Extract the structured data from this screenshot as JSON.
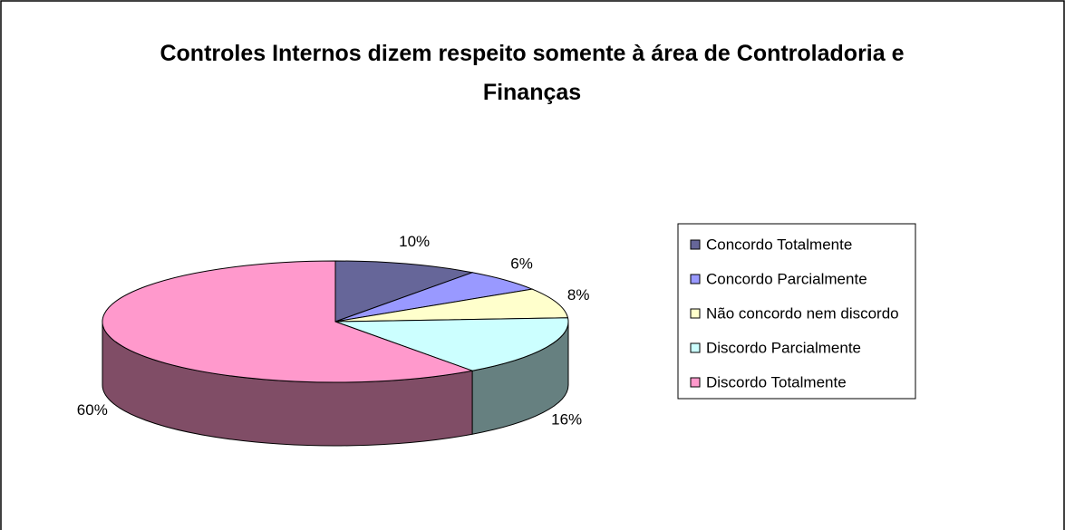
{
  "chart_data": {
    "type": "pie",
    "title": "Controles Internos dizem respeito somente à área de Controladoria e Finanças",
    "categories": [
      "Concordo Totalmente",
      "Concordo Parcialmente",
      "Não concordo nem discordo",
      "Discordo Parcialmente",
      "Discordo Totalmente"
    ],
    "values": [
      10,
      6,
      8,
      16,
      60
    ],
    "value_labels": [
      "10%",
      "6%",
      "8%",
      "16%",
      "60%"
    ],
    "colors": [
      "#666699",
      "#9999ff",
      "#ffffcc",
      "#ccffff",
      "#ff99cc"
    ],
    "legend": "right"
  }
}
